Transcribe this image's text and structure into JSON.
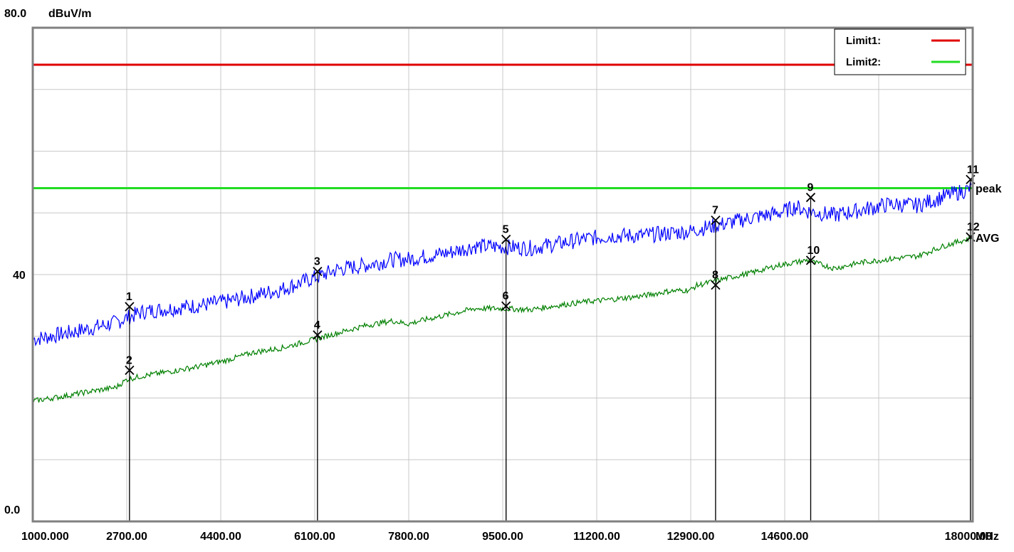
{
  "chart_data": {
    "type": "line",
    "title": "",
    "ylabel": "dBuV/m",
    "xlabel": "",
    "x_unit": "MHz",
    "xlim": [
      1000,
      18000
    ],
    "ylim": [
      0,
      80
    ],
    "y_top_label": "80.0",
    "y_mid_label": "40",
    "y_bottom_label": "0.0",
    "x_tick_labels": [
      "1000.000",
      "2700.00",
      "4400.00",
      "6100.00",
      "7800.00",
      "9500.00",
      "11200.00",
      "12900.00",
      "14600.00",
      "18000.00"
    ],
    "x_ticks": [
      1000,
      2700,
      4400,
      6100,
      7800,
      9500,
      11200,
      12900,
      14600,
      18000
    ],
    "x_grid": [
      1000,
      2700,
      4400,
      6100,
      7800,
      9500,
      11200,
      12900,
      14600,
      16300,
      18000
    ],
    "y_grid": [
      0,
      10,
      20,
      30,
      40,
      50,
      60,
      70,
      80
    ],
    "grid": true,
    "legend": {
      "position": "top-right",
      "entries": [
        {
          "name": "Limit1:",
          "color": "#e00000"
        },
        {
          "name": "Limit2:",
          "color": "#22dd22"
        }
      ]
    },
    "limits": [
      {
        "name": "Limit1",
        "value": 74,
        "color": "#e00000"
      },
      {
        "name": "Limit2",
        "value": 54,
        "color": "#22dd22"
      }
    ],
    "series": [
      {
        "name": "peak",
        "color": "#0000ff",
        "x": [
          1000,
          1500,
          2000,
          2500,
          2700,
          3000,
          3500,
          4000,
          4500,
          5000,
          5500,
          6100,
          6500,
          7000,
          7500,
          7800,
          8000,
          8500,
          9000,
          9500,
          10000,
          10500,
          11000,
          11500,
          12000,
          12500,
          12900,
          13000,
          13500,
          14000,
          14500,
          14800,
          15000,
          15500,
          16000,
          16500,
          17000,
          17500,
          18000
        ],
        "values": [
          29.5,
          30.3,
          31.2,
          32.2,
          33,
          34,
          34.5,
          35,
          35.6,
          36.6,
          37.6,
          39.5,
          40.8,
          41.5,
          42.4,
          42.5,
          42.8,
          43.5,
          44.6,
          44.5,
          44.3,
          45,
          45.8,
          46.3,
          46.3,
          46.7,
          47,
          47.3,
          48.2,
          49.2,
          50,
          51,
          50.3,
          49.6,
          50.5,
          51.4,
          51.2,
          52.7,
          54
        ]
      },
      {
        "name": "AVG",
        "color": "#008000",
        "x": [
          1000,
          1500,
          2000,
          2500,
          2700,
          3000,
          3500,
          4000,
          4500,
          5000,
          5500,
          6100,
          6500,
          7000,
          7500,
          7800,
          8000,
          8500,
          9000,
          9500,
          10000,
          10500,
          11000,
          11500,
          12000,
          12500,
          12900,
          13000,
          13500,
          14000,
          14500,
          14800,
          15000,
          15500,
          16000,
          16500,
          17000,
          17500,
          18000
        ],
        "values": [
          19.5,
          20.2,
          21,
          21.7,
          23,
          23.6,
          24.3,
          25.1,
          26.1,
          27.4,
          28.1,
          29.5,
          30.5,
          31.7,
          32.5,
          32,
          32.5,
          33.5,
          34.5,
          34.5,
          34.3,
          35,
          35.6,
          36,
          36.5,
          37.3,
          37.5,
          38.2,
          39.3,
          40.3,
          41.5,
          42,
          42.3,
          41,
          42,
          42.5,
          43,
          44.7,
          46
        ]
      }
    ],
    "series_labels": [
      {
        "series": "peak",
        "text": "peak"
      },
      {
        "series": "AVG",
        "text": "AVG"
      }
    ],
    "markers": [
      {
        "label": "1",
        "x": 2750,
        "y": 34.8
      },
      {
        "label": "2",
        "x": 2750,
        "y": 24.5
      },
      {
        "label": "3",
        "x": 6150,
        "y": 40.5
      },
      {
        "label": "4",
        "x": 6150,
        "y": 30.2
      },
      {
        "label": "5",
        "x": 9560,
        "y": 45.7
      },
      {
        "label": "6",
        "x": 9560,
        "y": 34.9
      },
      {
        "label": "7",
        "x": 13350,
        "y": 48.8
      },
      {
        "label": "8",
        "x": 13350,
        "y": 38.3
      },
      {
        "label": "9",
        "x": 15070,
        "y": 52.5
      },
      {
        "label": "10",
        "x": 15070,
        "y": 42.3
      },
      {
        "label": "11",
        "x": 17960,
        "y": 55.4
      },
      {
        "label": "12",
        "x": 17960,
        "y": 46.1
      }
    ]
  }
}
